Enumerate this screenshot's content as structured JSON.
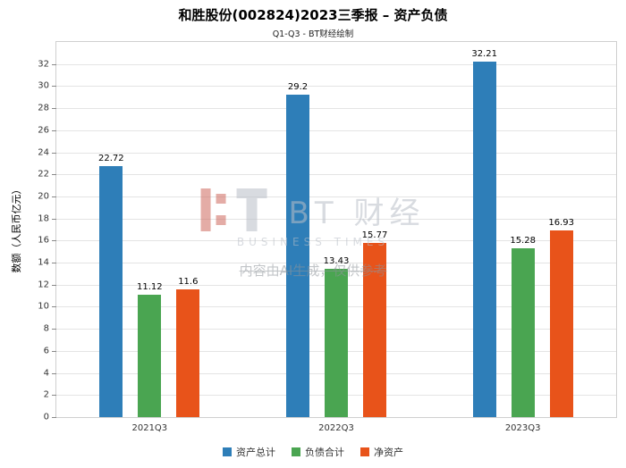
{
  "header": {
    "title": "和胜股份(002824)2023三季报 – 资产负债",
    "subtitle": "Q1-Q3 - BT财经绘制"
  },
  "chart_data": {
    "type": "bar",
    "categories": [
      "2021Q3",
      "2022Q3",
      "2023Q3"
    ],
    "series": [
      {
        "name": "资产总计",
        "color": "#2e7eb8",
        "values": [
          22.72,
          29.2,
          32.21
        ]
      },
      {
        "name": "负债合计",
        "color": "#4aa551",
        "values": [
          11.12,
          13.43,
          15.28
        ]
      },
      {
        "name": "净资产",
        "color": "#e8531a",
        "values": [
          11.6,
          15.77,
          16.93
        ]
      }
    ],
    "title": "和胜股份(002824)2023三季报 – 资产负债",
    "xlabel": "",
    "ylabel": "数额（人民币亿元）",
    "ylim": [
      0,
      34
    ],
    "yticks": [
      0,
      2,
      4,
      6,
      8,
      10,
      12,
      14,
      16,
      18,
      20,
      22,
      24,
      26,
      28,
      30,
      32
    ],
    "grid": true,
    "legend_position": "bottom"
  },
  "watermark": {
    "logo_text": "BT 财经",
    "logo_sub": "BUSINESS TIMES",
    "disclaimer": "内容由AI生成，仅供参考"
  }
}
